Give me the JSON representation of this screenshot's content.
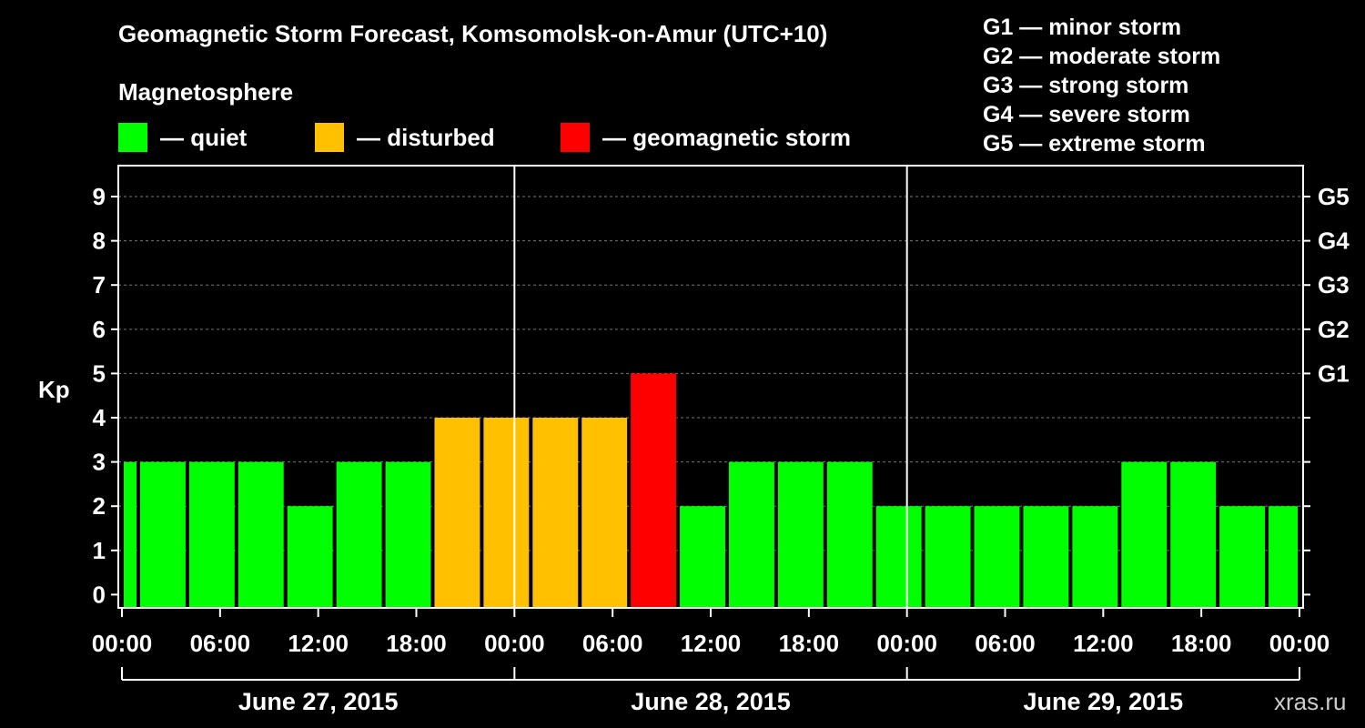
{
  "title": "Geomagnetic Storm Forecast, Komsomolsk-on-Amur (UTC+10)",
  "subtitle": "Magnetosphere",
  "legend": [
    {
      "label": "— quiet",
      "color": "#00ff00"
    },
    {
      "label": "— disturbed",
      "color": "#ffc000"
    },
    {
      "label": "— geomagnetic storm",
      "color": "#ff0000"
    }
  ],
  "storm_scale": [
    "G1 — minor storm",
    "G2 — moderate storm",
    "G3 — strong storm",
    "G4 — severe storm",
    "G5 — extreme storm"
  ],
  "watermark": "xras.ru",
  "chart_data": {
    "type": "bar",
    "title": "Geomagnetic Storm Forecast, Komsomolsk-on-Amur (UTC+10)",
    "ylabel": "Kp",
    "xlabel": "",
    "ylim": [
      -0.3,
      9.7
    ],
    "y_ticks": [
      0,
      1,
      2,
      3,
      4,
      5,
      6,
      7,
      8,
      9
    ],
    "y_right_ticks": [
      {
        "value": 5,
        "label": "G1"
      },
      {
        "value": 6,
        "label": "G2"
      },
      {
        "value": 7,
        "label": "G3"
      },
      {
        "value": 8,
        "label": "G4"
      },
      {
        "value": 9,
        "label": "G5"
      }
    ],
    "x_range_hours": [
      0,
      72
    ],
    "x_ticks": [
      {
        "hour": 0,
        "label": "00:00"
      },
      {
        "hour": 6,
        "label": "06:00"
      },
      {
        "hour": 12,
        "label": "12:00"
      },
      {
        "hour": 18,
        "label": "18:00"
      },
      {
        "hour": 24,
        "label": "00:00"
      },
      {
        "hour": 30,
        "label": "06:00"
      },
      {
        "hour": 36,
        "label": "12:00"
      },
      {
        "hour": 42,
        "label": "18:00"
      },
      {
        "hour": 48,
        "label": "00:00"
      },
      {
        "hour": 54,
        "label": "06:00"
      },
      {
        "hour": 60,
        "label": "12:00"
      },
      {
        "hour": 66,
        "label": "18:00"
      },
      {
        "hour": 72,
        "label": "00:00"
      }
    ],
    "days": [
      {
        "label": "June 27, 2015",
        "start": 0,
        "end": 24
      },
      {
        "label": "June 28, 2015",
        "start": 24,
        "end": 48
      },
      {
        "label": "June 29, 2015",
        "start": 48,
        "end": 72
      }
    ],
    "bars": [
      {
        "start": 0,
        "end": 1,
        "kp": 3,
        "status": "quiet"
      },
      {
        "start": 1,
        "end": 4,
        "kp": 3,
        "status": "quiet"
      },
      {
        "start": 4,
        "end": 7,
        "kp": 3,
        "status": "quiet"
      },
      {
        "start": 7,
        "end": 10,
        "kp": 3,
        "status": "quiet"
      },
      {
        "start": 10,
        "end": 13,
        "kp": 2,
        "status": "quiet"
      },
      {
        "start": 13,
        "end": 16,
        "kp": 3,
        "status": "quiet"
      },
      {
        "start": 16,
        "end": 19,
        "kp": 3,
        "status": "quiet"
      },
      {
        "start": 19,
        "end": 22,
        "kp": 4,
        "status": "disturbed"
      },
      {
        "start": 22,
        "end": 25,
        "kp": 4,
        "status": "disturbed"
      },
      {
        "start": 25,
        "end": 28,
        "kp": 4,
        "status": "disturbed"
      },
      {
        "start": 28,
        "end": 31,
        "kp": 4,
        "status": "disturbed"
      },
      {
        "start": 31,
        "end": 34,
        "kp": 5,
        "status": "storm"
      },
      {
        "start": 34,
        "end": 37,
        "kp": 2,
        "status": "quiet"
      },
      {
        "start": 37,
        "end": 40,
        "kp": 3,
        "status": "quiet"
      },
      {
        "start": 40,
        "end": 43,
        "kp": 3,
        "status": "quiet"
      },
      {
        "start": 43,
        "end": 46,
        "kp": 3,
        "status": "quiet"
      },
      {
        "start": 46,
        "end": 49,
        "kp": 2,
        "status": "quiet"
      },
      {
        "start": 49,
        "end": 52,
        "kp": 2,
        "status": "quiet"
      },
      {
        "start": 52,
        "end": 55,
        "kp": 2,
        "status": "quiet"
      },
      {
        "start": 55,
        "end": 58,
        "kp": 2,
        "status": "quiet"
      },
      {
        "start": 58,
        "end": 61,
        "kp": 2,
        "status": "quiet"
      },
      {
        "start": 61,
        "end": 64,
        "kp": 3,
        "status": "quiet"
      },
      {
        "start": 64,
        "end": 67,
        "kp": 3,
        "status": "quiet"
      },
      {
        "start": 67,
        "end": 70,
        "kp": 2,
        "status": "quiet"
      },
      {
        "start": 70,
        "end": 72,
        "kp": 2,
        "status": "quiet"
      }
    ],
    "status_colors": {
      "quiet": "#00ff00",
      "disturbed": "#ffc000",
      "storm": "#ff0000"
    }
  }
}
